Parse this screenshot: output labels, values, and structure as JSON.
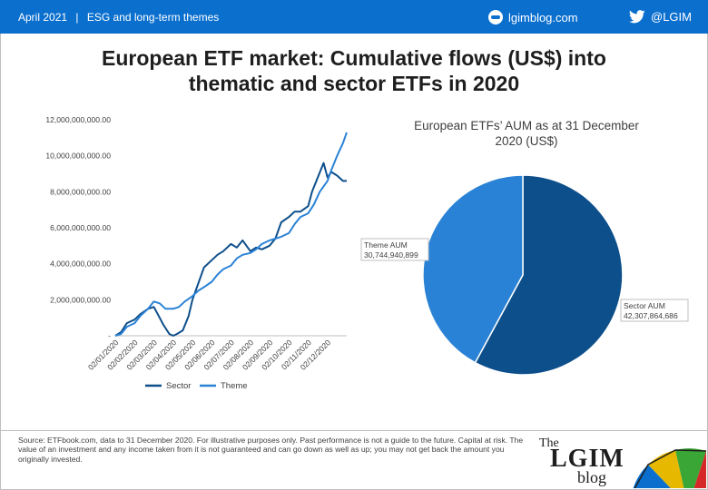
{
  "header": {
    "date": "April 2021",
    "separator": "|",
    "section": "ESG and long-term themes",
    "blog": "lgimblog.com",
    "twitter": "@LGIM",
    "bg_color": "#0b6fce"
  },
  "title": {
    "line1": "European ETF market: Cumulative flows (US$) into",
    "line2": "thematic and sector ETFs in 2020"
  },
  "chart_data": [
    {
      "type": "line",
      "xlabel": "",
      "ylabel": "",
      "ylim": [
        0,
        12000000000
      ],
      "y_ticks": [
        "-",
        "2,000,000,000.00",
        "4,000,000,000.00",
        "6,000,000,000.00",
        "8,000,000,000.00",
        "10,000,000,000.00",
        "12,000,000,000.00"
      ],
      "x_ticks": [
        "02/01/2020",
        "02/02/2020",
        "02/03/2020",
        "02/04/2020",
        "02/05/2020",
        "02/06/2020",
        "02/07/2020",
        "02/08/2020",
        "02/09/2020",
        "02/10/2020",
        "02/11/2020",
        "02/12/2020"
      ],
      "legend_position": "bottom",
      "grid": false,
      "series": [
        {
          "name": "Sector",
          "color": "#0d4f8b",
          "x": [
            0,
            0.3,
            0.6,
            1,
            1.3,
            1.7,
            2,
            2.2,
            2.5,
            2.8,
            3,
            3.2,
            3.5,
            3.8,
            4,
            4.3,
            4.6,
            5,
            5.3,
            5.6,
            6,
            6.3,
            6.6,
            7,
            7.3,
            7.6,
            8,
            8.3,
            8.6,
            9,
            9.3,
            9.6,
            10,
            10.2,
            10.5,
            10.8,
            11,
            11.2,
            11.5,
            11.8,
            12
          ],
          "values": [
            0,
            200000000.0,
            700000000.0,
            900000000.0,
            1200000000.0,
            1500000000.0,
            1600000000.0,
            1200000000.0,
            600000000.0,
            100000000.0,
            0.0,
            100000000.0,
            300000000.0,
            1100000000.0,
            2000000000.0,
            2900000000.0,
            3800000000.0,
            4200000000.0,
            4500000000.0,
            4700000000.0,
            5100000000.0,
            4900000000.0,
            5300000000.0,
            4700000000.0,
            4900000000.0,
            4800000000.0,
            5000000000.0,
            5400000000.0,
            6300000000.0,
            6600000000.0,
            6900000000.0,
            6900000000.0,
            7200000000.0,
            8000000000.0,
            8800000000.0,
            9600000000.0,
            8800000000.0,
            9100000000.0,
            8900000000.0,
            8600000000.0,
            8600000000.0
          ]
        },
        {
          "name": "Theme",
          "color": "#2a82d6",
          "x": [
            0,
            0.3,
            0.6,
            1,
            1.3,
            1.7,
            2,
            2.3,
            2.6,
            3,
            3.3,
            3.6,
            4,
            4.3,
            4.6,
            5,
            5.3,
            5.6,
            6,
            6.3,
            6.6,
            7,
            7.3,
            7.6,
            8,
            8.3,
            8.6,
            9,
            9.3,
            9.6,
            10,
            10.3,
            10.6,
            11,
            11.2,
            11.5,
            11.8,
            12
          ],
          "values": [
            0,
            100000000.0,
            500000000.0,
            700000000.0,
            1100000000.0,
            1500000000.0,
            1900000000.0,
            1800000000.0,
            1500000000.0,
            1500000000.0,
            1600000000.0,
            1900000000.0,
            2200000000.0,
            2500000000.0,
            2700000000.0,
            3000000000.0,
            3400000000.0,
            3700000000.0,
            3900000000.0,
            4300000000.0,
            4500000000.0,
            4600000000.0,
            4800000000.0,
            5100000000.0,
            5300000000.0,
            5400000000.0,
            5500000000.0,
            5700000000.0,
            6200000000.0,
            6600000000.0,
            6800000000.0,
            7300000000.0,
            8000000000.0,
            8600000000.0,
            9200000000.0,
            10000000000.0,
            10700000000.0,
            11300000000.0
          ]
        }
      ]
    },
    {
      "type": "pie",
      "title": "European ETFs’ AUM as at 31 December 2020 (US$)",
      "title_line1": "European ETFs’ AUM as at 31 December",
      "title_line2": "2020 (US$)",
      "slices": [
        {
          "name": "Sector AUM",
          "value": 42307864686,
          "value_label": "42,307,864,686",
          "color": "#0d4f8b"
        },
        {
          "name": "Theme AUM",
          "value": 30744940899,
          "value_label": "30,744,940,899",
          "color": "#2a82d6"
        }
      ]
    }
  ],
  "footnote": "Source: ETFbook.com, data to 31 December 2020. For illustrative purposes only. Past performance is not a guide to the future. Capital at risk. The value of an investment and any income taken from it is not guaranteed and can go down as well as up; you may not get back the amount you originally invested.",
  "logo": {
    "the": "The",
    "name": "LGIM",
    "blog": "blog"
  }
}
